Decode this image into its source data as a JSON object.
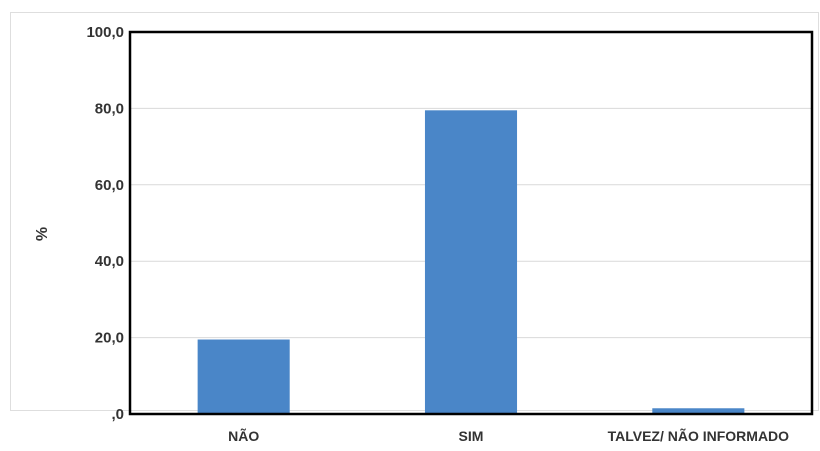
{
  "chart_data": {
    "type": "bar",
    "title": "",
    "xlabel": "",
    "ylabel": "%",
    "categories": [
      "NÃO",
      "SIM",
      "TALVEZ/ NÃO INFORMADO"
    ],
    "values": [
      19.5,
      79.5,
      1.5
    ],
    "ylim": [
      0,
      100
    ],
    "yticks": [
      0,
      20,
      40,
      60,
      80,
      100
    ],
    "ytick_labels": [
      ",0",
      "20,0",
      "40,0",
      "60,0",
      "80,0",
      "100,0"
    ],
    "grid": true,
    "legend": "none",
    "bar_color": "#4a86c8",
    "grid_color": "#d9d9d9",
    "axis_color": "#000000"
  }
}
